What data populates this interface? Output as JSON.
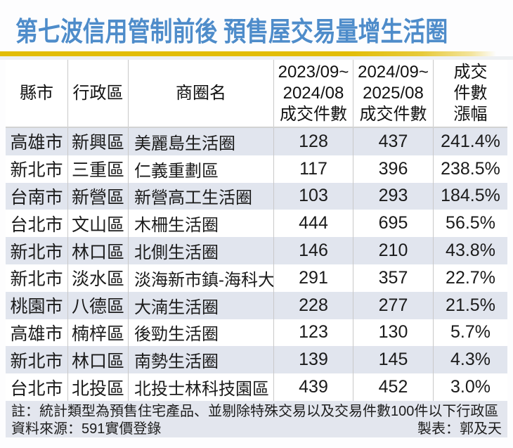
{
  "title": "第七波信用管制前後 預售屋交易量增生活圈",
  "colors": {
    "title_blue": "#4e8cca",
    "underline_gold": "#e2bd05",
    "row_shade": "#e1e5ee",
    "footer_bg": "#e3e6ee",
    "divider_gray": "#c9c9c9",
    "text": "#1b1b1b"
  },
  "table": {
    "headers": [
      {
        "lines": [
          "縣市"
        ]
      },
      {
        "lines": [
          "行政區"
        ]
      },
      {
        "lines": [
          "商圈名"
        ]
      },
      {
        "lines": [
          "2023/09~",
          "2024/08",
          "成交件數"
        ]
      },
      {
        "lines": [
          "2024/09~",
          "2025/08",
          "成交件數"
        ]
      },
      {
        "lines": [
          "成交",
          "件數",
          "漲幅"
        ]
      }
    ],
    "rows": [
      [
        "高雄市",
        "新興區",
        "美麗島生活圈",
        "128",
        "437",
        "241.4%"
      ],
      [
        "新北市",
        "三重區",
        "仁義重劃區",
        "117",
        "396",
        "238.5%"
      ],
      [
        "台南市",
        "新營區",
        "新營高工生活圈",
        "103",
        "293",
        "184.5%"
      ],
      [
        "台北市",
        "文山區",
        "木柵生活圈",
        "444",
        "695",
        "56.5%"
      ],
      [
        "新北市",
        "林口區",
        "北側生活圈",
        "146",
        "210",
        "43.8%"
      ],
      [
        "新北市",
        "淡水區",
        "淡海新市鎮-海科大",
        "291",
        "357",
        "22.7%"
      ],
      [
        "桃園市",
        "八德區",
        "大湳生活圈",
        "228",
        "277",
        "21.5%"
      ],
      [
        "高雄市",
        "楠梓區",
        "後勁生活圈",
        "123",
        "130",
        "5.7%"
      ],
      [
        "新北市",
        "林口區",
        "南勢生活圈",
        "139",
        "145",
        "4.3%"
      ],
      [
        "台北市",
        "北投區",
        "北投士林科技園區",
        "439",
        "452",
        "3.0%"
      ]
    ]
  },
  "footer": {
    "note": "註：統計類型為預售住宅產品、並剔除特殊交易以及交易件數100件以下行政區",
    "source": "資料來源：591實價登錄",
    "credit": "製表：郭及天"
  },
  "chart_data": {
    "type": "table",
    "title": "第七波信用管制前後 預售屋交易量增生活圈",
    "columns": [
      "縣市",
      "行政區",
      "商圈名",
      "2023/09~2024/08 成交件數",
      "2024/09~2025/08 成交件數",
      "成交件數漲幅"
    ],
    "rows": [
      [
        "高雄市",
        "新興區",
        "美麗島生活圈",
        128,
        437,
        "241.4%"
      ],
      [
        "新北市",
        "三重區",
        "仁義重劃區",
        117,
        396,
        "238.5%"
      ],
      [
        "台南市",
        "新營區",
        "新營高工生活圈",
        103,
        293,
        "184.5%"
      ],
      [
        "台北市",
        "文山區",
        "木柵生活圈",
        444,
        695,
        "56.5%"
      ],
      [
        "新北市",
        "林口區",
        "北側生活圈",
        146,
        210,
        "43.8%"
      ],
      [
        "新北市",
        "淡水區",
        "淡海新市鎮-海科大",
        291,
        357,
        "22.7%"
      ],
      [
        "桃園市",
        "八德區",
        "大湳生活圈",
        228,
        277,
        "21.5%"
      ],
      [
        "高雄市",
        "楠梓區",
        "後勁生活圈",
        123,
        130,
        "5.7%"
      ],
      [
        "新北市",
        "林口區",
        "南勢生活圈",
        139,
        145,
        "4.3%"
      ],
      [
        "台北市",
        "北投區",
        "北投士林科技園區",
        439,
        452,
        "3.0%"
      ]
    ],
    "notes": [
      "註：統計類型為預售住宅產品、並剔除特殊交易以及交易件數100件以下行政區",
      "資料來源：591實價登錄",
      "製表：郭及天"
    ]
  }
}
